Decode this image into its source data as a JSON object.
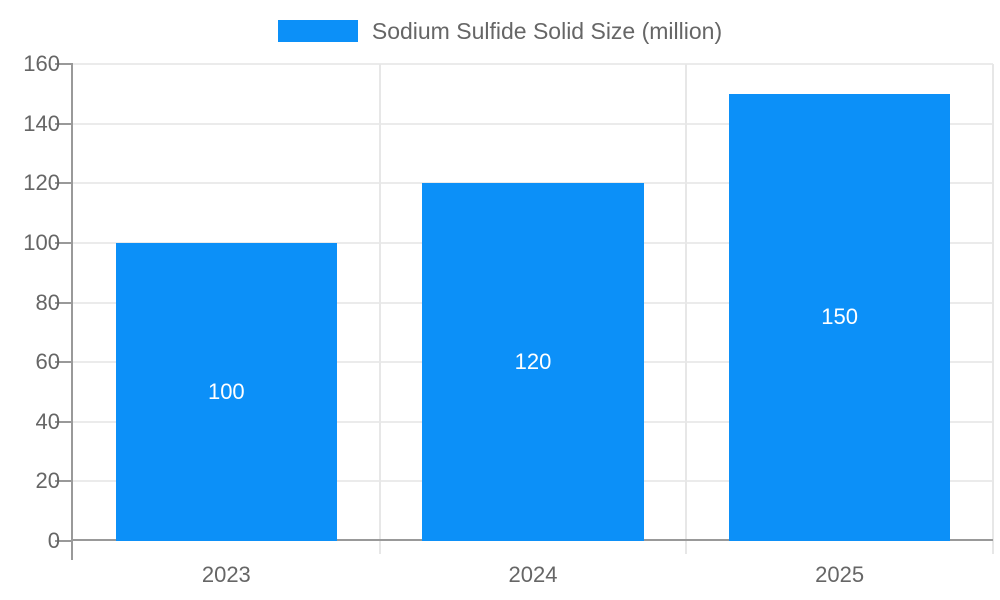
{
  "legend": {
    "label": "Sodium Sulfide Solid Size (million)"
  },
  "chart_data": {
    "type": "bar",
    "title": "Sodium Sulfide Solid Size (million)",
    "categories": [
      "2023",
      "2024",
      "2025"
    ],
    "values": [
      100,
      120,
      150
    ],
    "data_labels": [
      "100",
      "120",
      "150"
    ],
    "xlabel": "",
    "ylabel": "",
    "ylim": [
      0,
      160
    ],
    "yticks": [
      0,
      20,
      40,
      60,
      80,
      100,
      120,
      140,
      160
    ],
    "grid": true,
    "legend_position": "top",
    "colors": {
      "bar": "#0c90f8",
      "bar_label_text": "#ffffff",
      "axis_text": "#666666",
      "gridline": "#ebebeb",
      "axis_line": "#999999"
    }
  }
}
